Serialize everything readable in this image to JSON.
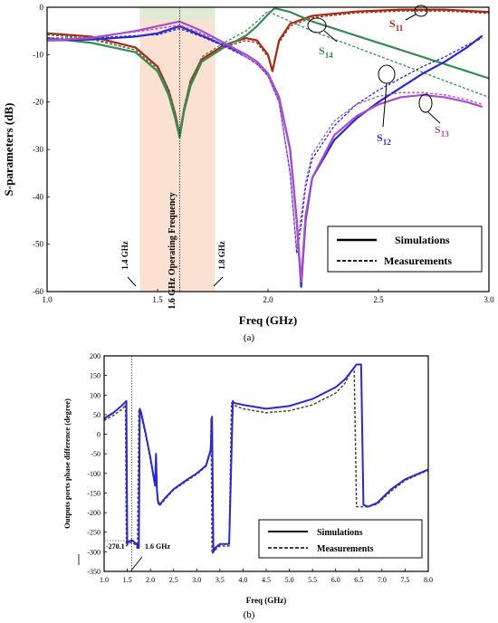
{
  "chart_data": [
    {
      "type": "line",
      "panel_label": "(a)",
      "xlabel": "Freq (GHz)",
      "ylabel": "S-parameters (dB)",
      "xlim": [
        1.0,
        3.0
      ],
      "ylim": [
        -60,
        0
      ],
      "xticks": [
        "1.0",
        "1.5",
        "2.0",
        "2.5",
        "3.0"
      ],
      "yticks": [
        "0",
        "-10",
        "-20",
        "-30",
        "-40",
        "-50",
        "-60"
      ],
      "grid": false,
      "legend": {
        "position": "bottom-right",
        "entries": [
          "Simulations",
          "Measurements"
        ]
      },
      "bands": [
        {
          "from": 1.42,
          "to": 1.76,
          "color": "#f6c9ad"
        },
        {
          "from": 1.42,
          "to": 1.76,
          "color": "#d8ecd6",
          "y_from": 0,
          "y_to": -2.6
        }
      ],
      "marker_line": {
        "x": 1.6,
        "label": "1.6 GHz Operating Frequency"
      },
      "annotations": [
        {
          "text": "1.4 GHz",
          "x": 1.4
        },
        {
          "text": "1.8 GHz",
          "x": 1.8
        }
      ],
      "series": [
        {
          "key": "s11",
          "label": "S",
          "sub": "11",
          "color": "#a52a12",
          "x": [
            1.0,
            1.2,
            1.4,
            1.5,
            1.55,
            1.58,
            1.6,
            1.62,
            1.65,
            1.7,
            1.8,
            1.9,
            1.95,
            2.0,
            2.02,
            2.05,
            2.1,
            2.2,
            2.4,
            2.6,
            2.8,
            3.0
          ],
          "sim": [
            -5.5,
            -6.2,
            -8.5,
            -12.5,
            -17.5,
            -22.5,
            -27.0,
            -21.5,
            -15.5,
            -11.0,
            -8.0,
            -6.5,
            -7.0,
            -10.0,
            -13.5,
            -7.0,
            -3.5,
            -1.8,
            -0.9,
            -0.5,
            -0.5,
            -1.0
          ],
          "meas": [
            -5.8,
            -6.6,
            -9.0,
            -13.5,
            -18.5,
            -23.5,
            -27.5,
            -22.0,
            -16.0,
            -11.5,
            -8.5,
            -7.0,
            -7.5,
            -10.5,
            -13.8,
            -7.5,
            -4.0,
            -2.2,
            -1.2,
            -0.8,
            -0.8,
            -1.3
          ]
        },
        {
          "key": "s14",
          "label": "S",
          "sub": "14",
          "color": "#3a8a55",
          "x": [
            1.0,
            1.2,
            1.4,
            1.5,
            1.55,
            1.58,
            1.6,
            1.62,
            1.65,
            1.7,
            1.8,
            1.9,
            1.95,
            2.0,
            2.03,
            2.1,
            2.2,
            2.4,
            2.6,
            2.8,
            3.0
          ],
          "sim": [
            -6.5,
            -7.5,
            -9.5,
            -13.5,
            -18.5,
            -23.5,
            -27.5,
            -22.0,
            -16.5,
            -11.5,
            -8.5,
            -6.0,
            -4.0,
            -1.5,
            -0.2,
            -1.0,
            -3.0,
            -6.0,
            -9.0,
            -12.0,
            -15.0
          ],
          "meas": [
            -5.5,
            -6.8,
            -9.0,
            -13.0,
            -17.5,
            -22.5,
            -26.5,
            -21.0,
            -15.5,
            -10.5,
            -7.5,
            -5.0,
            -3.0,
            -0.8,
            -1.5,
            -3.0,
            -5.0,
            -8.5,
            -12.0,
            -15.5,
            -19.0
          ]
        },
        {
          "key": "s12",
          "label": "S",
          "sub": "12",
          "color": "#2a2acc",
          "x": [
            1.0,
            1.2,
            1.4,
            1.5,
            1.6,
            1.7,
            1.8,
            1.9,
            1.95,
            2.0,
            2.05,
            2.1,
            2.13,
            2.15,
            2.17,
            2.2,
            2.3,
            2.4,
            2.5,
            2.6,
            2.7,
            2.8,
            2.9,
            2.97
          ],
          "sim": [
            -7.0,
            -6.8,
            -6.2,
            -5.5,
            -4.0,
            -6.0,
            -8.0,
            -10.0,
            -11.5,
            -14.0,
            -19.0,
            -30.0,
            -45.0,
            -59.0,
            -45.0,
            -36.0,
            -28.0,
            -23.5,
            -20.0,
            -17.0,
            -14.0,
            -11.5,
            -8.5,
            -6.0
          ],
          "meas": [
            -6.5,
            -6.5,
            -6.0,
            -5.8,
            -4.5,
            -6.2,
            -8.2,
            -10.5,
            -12.0,
            -14.5,
            -20.0,
            -35.0,
            -52.0,
            -46.0,
            -38.0,
            -32.0,
            -25.0,
            -20.5,
            -17.5,
            -15.0,
            -12.5,
            -10.5,
            -8.0,
            -6.5
          ]
        },
        {
          "key": "s13",
          "label": "S",
          "sub": "13",
          "color": "#a64fc9",
          "x": [
            1.0,
            1.2,
            1.4,
            1.5,
            1.6,
            1.7,
            1.8,
            1.9,
            1.95,
            2.0,
            2.05,
            2.1,
            2.13,
            2.15,
            2.17,
            2.2,
            2.3,
            2.4,
            2.5,
            2.6,
            2.7,
            2.8,
            2.9,
            2.97
          ],
          "sim": [
            -7.0,
            -6.5,
            -5.0,
            -4.0,
            -3.0,
            -5.0,
            -7.5,
            -10.0,
            -11.5,
            -14.0,
            -19.0,
            -30.0,
            -45.0,
            -58.0,
            -44.0,
            -36.0,
            -27.0,
            -23.0,
            -20.5,
            -19.0,
            -18.5,
            -19.0,
            -20.0,
            -21.0
          ],
          "meas": [
            -6.8,
            -6.3,
            -5.2,
            -4.5,
            -3.8,
            -5.5,
            -8.0,
            -10.5,
            -12.0,
            -14.5,
            -20.0,
            -35.0,
            -51.0,
            -44.0,
            -37.0,
            -31.0,
            -24.0,
            -20.5,
            -18.8,
            -18.0,
            -18.0,
            -18.5,
            -19.5,
            -20.5
          ]
        }
      ]
    },
    {
      "type": "line",
      "panel_label": "(b)",
      "xlabel": "Freq (GHz)",
      "ylabel": "Outputs ports phase difference (degree)",
      "xlim": [
        1.0,
        8.0
      ],
      "ylim": [
        -350,
        200
      ],
      "xticks": [
        "1.0",
        "1.5",
        "2.0",
        "2.5",
        "3.0",
        "3.5",
        "4.0",
        "4.5",
        "5.0",
        "5.5",
        "6.0",
        "6.5",
        "7.0",
        "7.5",
        "8.0"
      ],
      "yticks": [
        "200",
        "150",
        "100",
        "50",
        "0",
        "-50",
        "-100",
        "-150",
        "-200",
        "-250",
        "-300",
        "-350"
      ],
      "grid": false,
      "legend": {
        "position": "bottom-right",
        "entries": [
          "Simulations",
          "Measurements"
        ]
      },
      "marker_line": {
        "x": 1.6,
        "label": "1.6 GHz"
      },
      "marker_value": "-270.1",
      "series": [
        {
          "name": "Simulations",
          "color": "#2a2acc",
          "x": [
            1.0,
            1.2,
            1.4,
            1.48,
            1.5,
            1.52,
            1.6,
            1.7,
            1.75,
            1.77,
            1.8,
            1.9,
            2.0,
            2.1,
            2.12,
            2.14,
            2.16,
            2.2,
            2.3,
            2.5,
            2.8,
            3.0,
            3.2,
            3.3,
            3.33,
            3.36,
            3.4,
            3.5,
            3.6,
            3.7,
            3.78,
            3.8,
            4.0,
            4.5,
            5.0,
            5.5,
            6.0,
            6.2,
            6.4,
            6.45,
            6.55,
            6.6,
            6.7,
            6.9,
            7.2,
            7.5,
            7.8,
            8.0
          ],
          "y": [
            40,
            55,
            75,
            85,
            -280,
            -275,
            -270,
            -280,
            -290,
            65,
            55,
            0,
            -60,
            -130,
            -50,
            -140,
            -170,
            -180,
            -165,
            -140,
            -115,
            -100,
            -80,
            -40,
            45,
            -300,
            -290,
            -280,
            -280,
            -280,
            85,
            80,
            75,
            65,
            72,
            90,
            120,
            140,
            170,
            178,
            178,
            -180,
            -185,
            -175,
            -140,
            -115,
            -100,
            -90
          ]
        },
        {
          "name": "Measurements",
          "color": "#5a3f36",
          "x": [
            1.0,
            1.2,
            1.4,
            1.46,
            1.48,
            1.52,
            1.6,
            1.7,
            1.72,
            1.75,
            1.8,
            1.9,
            2.0,
            2.1,
            2.12,
            2.14,
            2.16,
            2.2,
            2.3,
            2.5,
            2.8,
            3.0,
            3.2,
            3.3,
            3.31,
            3.33,
            3.4,
            3.5,
            3.6,
            3.7,
            3.75,
            3.78,
            4.0,
            4.5,
            5.0,
            5.5,
            6.0,
            6.2,
            6.35,
            6.4,
            6.45,
            6.5,
            6.7,
            6.9,
            7.2,
            7.5,
            7.8,
            8.0
          ],
          "y": [
            35,
            48,
            65,
            75,
            -285,
            -280,
            -275,
            -285,
            -295,
            60,
            50,
            -5,
            -65,
            -135,
            -55,
            -145,
            -175,
            -182,
            -168,
            -142,
            -118,
            -102,
            -82,
            -45,
            40,
            -305,
            -295,
            -285,
            -285,
            -285,
            80,
            75,
            65,
            55,
            60,
            75,
            105,
            130,
            165,
            170,
            -185,
            -185,
            -185,
            -178,
            -145,
            -118,
            -102,
            -92
          ]
        }
      ]
    }
  ]
}
